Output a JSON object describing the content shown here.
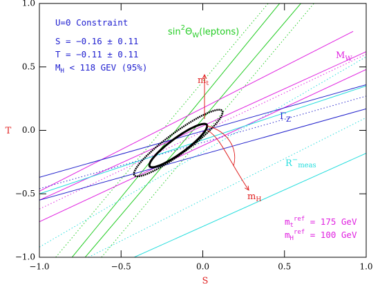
{
  "chart_data": {
    "type": "line",
    "xlabel": "S",
    "ylabel": "T",
    "xlim": [
      -1.0,
      1.0
    ],
    "ylim": [
      -1.0,
      1.0
    ],
    "xticks": [
      {
        "value": -1.0,
        "label": "−1.0"
      },
      {
        "value": -0.5,
        "label": "−0.5"
      },
      {
        "value": 0.0,
        "label": "0.0"
      },
      {
        "value": 0.5,
        "label": "0.5"
      },
      {
        "value": 1.0,
        "label": "1.0"
      }
    ],
    "yticks": [
      {
        "value": -1.0,
        "label": "−1.0"
      },
      {
        "value": -0.5,
        "label": "−0.5"
      },
      {
        "value": 0.0,
        "label": "0.0"
      },
      {
        "value": 0.5,
        "label": "0.5"
      },
      {
        "value": 1.0,
        "label": "1.0"
      }
    ],
    "series": [
      {
        "color": "#22cc22",
        "style": "solid",
        "x": [
          -0.8,
          0.47
        ],
        "y": [
          -1.0,
          1.0
        ]
      },
      {
        "color": "#22cc22",
        "style": "solid",
        "x": [
          -0.72,
          0.6
        ],
        "y": [
          -1.0,
          1.0
        ]
      },
      {
        "color": "#22cc22",
        "style": "dotted",
        "x": [
          -0.9,
          0.4
        ],
        "y": [
          -1.0,
          1.0
        ]
      },
      {
        "color": "#22cc22",
        "style": "dotted",
        "x": [
          -0.62,
          0.68
        ],
        "y": [
          -1.0,
          1.0
        ]
      },
      {
        "color": "#e020e0",
        "style": "solid",
        "x": [
          -1.0,
          1.0
        ],
        "y": [
          -0.55,
          0.62
        ]
      },
      {
        "color": "#e020e0",
        "style": "solid",
        "x": [
          -1.0,
          1.0
        ],
        "y": [
          -0.72,
          0.48
        ]
      },
      {
        "color": "#e020e0",
        "style": "solid",
        "x": [
          -1.0,
          0.92
        ],
        "y": [
          -0.48,
          0.78
        ]
      },
      {
        "color": "#e020e0",
        "style": "dotted",
        "x": [
          -1.0,
          1.0
        ],
        "y": [
          -0.62,
          0.6
        ]
      },
      {
        "color": "#2222cc",
        "style": "solid",
        "x": [
          -1.0,
          1.0
        ],
        "y": [
          -0.37,
          0.36
        ]
      },
      {
        "color": "#2222cc",
        "style": "solid",
        "x": [
          -1.0,
          1.0
        ],
        "y": [
          -0.55,
          0.17
        ]
      },
      {
        "color": "#2222cc",
        "style": "dotted",
        "x": [
          -1.0,
          1.0
        ],
        "y": [
          -0.46,
          0.27
        ]
      },
      {
        "color": "#22dddd",
        "style": "solid",
        "x": [
          -1.0,
          1.0
        ],
        "y": [
          -0.5,
          0.35
        ]
      },
      {
        "color": "#22dddd",
        "style": "solid",
        "x": [
          -0.42,
          1.0
        ],
        "y": [
          -1.0,
          -0.18
        ]
      },
      {
        "color": "#22dddd",
        "style": "dotted",
        "x": [
          -1.0,
          1.0
        ],
        "y": [
          -0.92,
          0.58
        ]
      },
      {
        "color": "#22dddd",
        "style": "dotted",
        "x": [
          -0.7,
          1.0
        ],
        "y": [
          -1.0,
          0.1
        ]
      }
    ],
    "ellipses": [
      {
        "center": [
          -0.15,
          -0.1
        ],
        "major": 0.37,
        "minor": 0.075,
        "angle": 44,
        "color": "#000000",
        "style": "dotted"
      },
      {
        "center": [
          -0.15,
          -0.12
        ],
        "major": 0.24,
        "minor": 0.055,
        "angle": 44,
        "color": "#000000",
        "style": "solid"
      }
    ],
    "annotations": {
      "constraint": "U=0 Constraint",
      "s_value": "S = −0.16 ± 0.11",
      "t_value": "T = −0.11 ± 0.11",
      "mh_limit": [
        "M",
        "H",
        " < 118 GEV (95%)"
      ],
      "sin2": [
        "sin",
        "2",
        "Θ",
        "W",
        "(leptons)"
      ],
      "mw": [
        "M",
        "W"
      ],
      "gz": [
        "Γ",
        "Z"
      ],
      "rb": [
        "R",
        "−",
        "meas"
      ],
      "mt": [
        "m",
        "t"
      ],
      "mh": [
        "m",
        "H"
      ],
      "mt_ref": [
        "m",
        "t",
        "ref",
        " = 175 GeV"
      ],
      "mh_ref": [
        "m",
        "H",
        "ref",
        " = 100 GeV"
      ]
    }
  }
}
